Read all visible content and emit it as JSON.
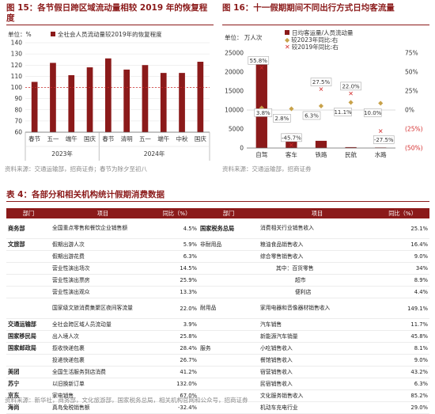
{
  "fig15": {
    "title_line1": "图 15：各节假日跨区域流动量相较 2019 年的恢复程",
    "title_line2": "度",
    "unit_label": "单位：%",
    "source": "资料来源：交通运输部，招商证券；春节为除夕至初八",
    "legend": "全社会人员流动量较2019年的恢复程度",
    "year_labels": [
      "2023年",
      "2024年"
    ],
    "bar_color": "#8b1a1a",
    "chart_data": {
      "type": "bar",
      "categories": [
        "春节",
        "五一",
        "端午",
        "国庆",
        "春节",
        "清明",
        "五一",
        "端午",
        "中秋",
        "国庆"
      ],
      "values": [
        105,
        122,
        111,
        118,
        126,
        116,
        120,
        113,
        113,
        123
      ],
      "ylim": [
        0,
        140
      ],
      "yticks": [
        0,
        10,
        20,
        30,
        40,
        50,
        60,
        70,
        80,
        90,
        100,
        110,
        120,
        130,
        140
      ],
      "reference_line": 100,
      "grid": true,
      "legend_position": "top-left"
    }
  },
  "fig16": {
    "title": "图 16：十一假期期间不同出行方式日均客流量",
    "unit_label": "单位：",
    "unit_value": "万人次",
    "source": "资料来源：交通运输部，招商证券",
    "legend_bar": "日均客运量/人员流动量",
    "legend_2023": "较2023年同比:右",
    "legend_2019": "较2019年同比:右",
    "colors": {
      "bar": "#8b1a1a",
      "yoy2023": "#c8a24a",
      "yoy2019": "#d42a2a"
    },
    "chart_data": {
      "type": "bar",
      "categories": [
        "自驾",
        "客车",
        "铁路",
        "民航",
        "水路"
      ],
      "values": [
        22500,
        3800,
        1900,
        230,
        130
      ],
      "series": [
        {
          "name": "日均客运量/人员流动量",
          "values": [
            22500,
            3800,
            1900,
            230,
            130
          ]
        },
        {
          "name": "较2023年同比:右",
          "values": [
            3.8,
            2.8,
            6.3,
            11.1,
            10.0
          ]
        },
        {
          "name": "较2019年同比:右",
          "values": [
            55.8,
            -45.7,
            27.5,
            22.0,
            -27.5
          ]
        }
      ],
      "ylim_left": [
        0,
        25000
      ],
      "yticks_left": [
        0,
        5000,
        10000,
        15000,
        20000,
        25000
      ],
      "ylim_right": [
        -50,
        75
      ],
      "yticks_right": [
        "(50%)",
        "(25%)",
        "0%",
        "25%",
        "50%",
        "75%"
      ],
      "labels_2023": [
        "3.8%",
        "2.8%",
        "6.3%",
        "11.1%",
        "10.0%"
      ],
      "labels_2019": [
        "55.8%",
        "-45.7%",
        "27.5%",
        "22.0%",
        "-27.5%"
      ],
      "legend_position": "top-left"
    }
  },
  "table4": {
    "title": "表 4：各部分和相关机构统计假期消费数据",
    "headers": [
      "部门",
      "项目",
      "同比（%）",
      "部门",
      "项目",
      "同比（%）"
    ],
    "header_color": "#8b1a1a",
    "left_rows": [
      {
        "dept": "商务部",
        "item": "全国重点零售和餐饮企业销售额",
        "val": "4.5%",
        "tall": true
      },
      {
        "dept": "文旅部",
        "item": "假期出游人次",
        "val": "5.9%"
      },
      {
        "dept": "",
        "item": "假期出游花费",
        "val": "6.3%"
      },
      {
        "dept": "",
        "item": "营业性演出场次",
        "val": "14.5%"
      },
      {
        "dept": "",
        "item": "营业性演出票房",
        "val": "25.9%"
      },
      {
        "dept": "",
        "item": "营业性演出观众",
        "val": "13.3%"
      },
      {
        "dept": "",
        "item": "国家级文旅消费集聚区夜间客流量",
        "val": "22.0%",
        "tall": true
      },
      {
        "dept": "交通运输部",
        "item": "全社会跨区域人员流动量",
        "val": "3.9%"
      },
      {
        "dept": "国家移民局",
        "item": "出入境人次",
        "val": "25.8%"
      },
      {
        "dept": "国家邮政局",
        "item": "揽收快递包裹",
        "val": "28.4%"
      },
      {
        "dept": "",
        "item": "投递快递包裹",
        "val": "26.7%"
      },
      {
        "dept": "美团",
        "item": "全国生活服务到店消费",
        "val": "41.2%"
      },
      {
        "dept": "苏宁",
        "item": "以旧换新订单",
        "val": "132.0%"
      },
      {
        "dept": "京东",
        "item": "家电销售",
        "val": "67.0%"
      },
      {
        "dept": "海尚",
        "item": "真岛免税销售额",
        "val": "-32.4%"
      }
    ],
    "right_rows": [
      {
        "dept": "国家税务总局",
        "item": "消费相关行业销售收入",
        "val": "25.1%",
        "tall": true
      },
      {
        "dept": "非耐用品",
        "item": "粮油食品销售收入",
        "val": "16.4%",
        "sub": true
      },
      {
        "dept": "",
        "item": "综合零售销售收入",
        "val": "9.0%"
      },
      {
        "dept": "",
        "item": "其中：百货零售",
        "val": "34%",
        "indent": true
      },
      {
        "dept": "",
        "item": "超市",
        "val": "8.9%",
        "indent2": true
      },
      {
        "dept": "",
        "item": "便利店",
        "val": "4.4%",
        "indent2": true
      },
      {
        "dept": "耐用品",
        "item": "家用电器和音像器材销售收入",
        "val": "149.1%",
        "sub": true,
        "tall": true
      },
      {
        "dept": "",
        "item": "汽车销售",
        "val": "11.7%"
      },
      {
        "dept": "",
        "item": "新能源汽车销量",
        "val": "45.8%"
      },
      {
        "dept": "服务",
        "item": "小吃销售收入",
        "val": "8.1%",
        "sub": true
      },
      {
        "dept": "",
        "item": "餐馆销售收入",
        "val": "9.0%"
      },
      {
        "dept": "",
        "item": "宿营销售收入",
        "val": "43.2%"
      },
      {
        "dept": "",
        "item": "民宿销售收入",
        "val": "6.3%"
      },
      {
        "dept": "",
        "item": "文化服务销售收入",
        "val": "85.2%"
      },
      {
        "dept": "",
        "item": "机动车充电行业",
        "val": "29.0%"
      }
    ],
    "source": "资料来源：新华社，商务部，文化旅游部，国家税务总局，相关机构官网和公众号，招商证券"
  }
}
